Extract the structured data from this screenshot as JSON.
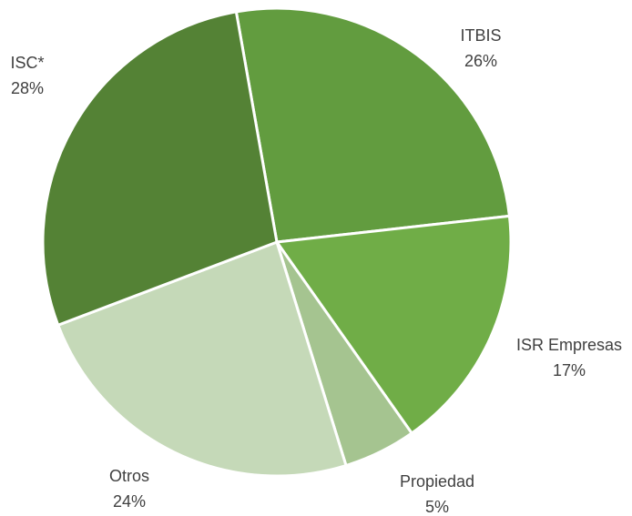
{
  "chart_data": {
    "type": "pie",
    "categories": [
      "ITBIS",
      "ISR Empresas",
      "Propiedad",
      "Otros",
      "ISC*"
    ],
    "values": [
      26,
      17,
      5,
      24,
      28
    ],
    "value_labels": [
      "26%",
      "17%",
      "5%",
      "24%",
      "28%"
    ],
    "colors": [
      "#629c3f",
      "#70ad47",
      "#a5c490",
      "#c5d9b8",
      "#548235"
    ]
  }
}
